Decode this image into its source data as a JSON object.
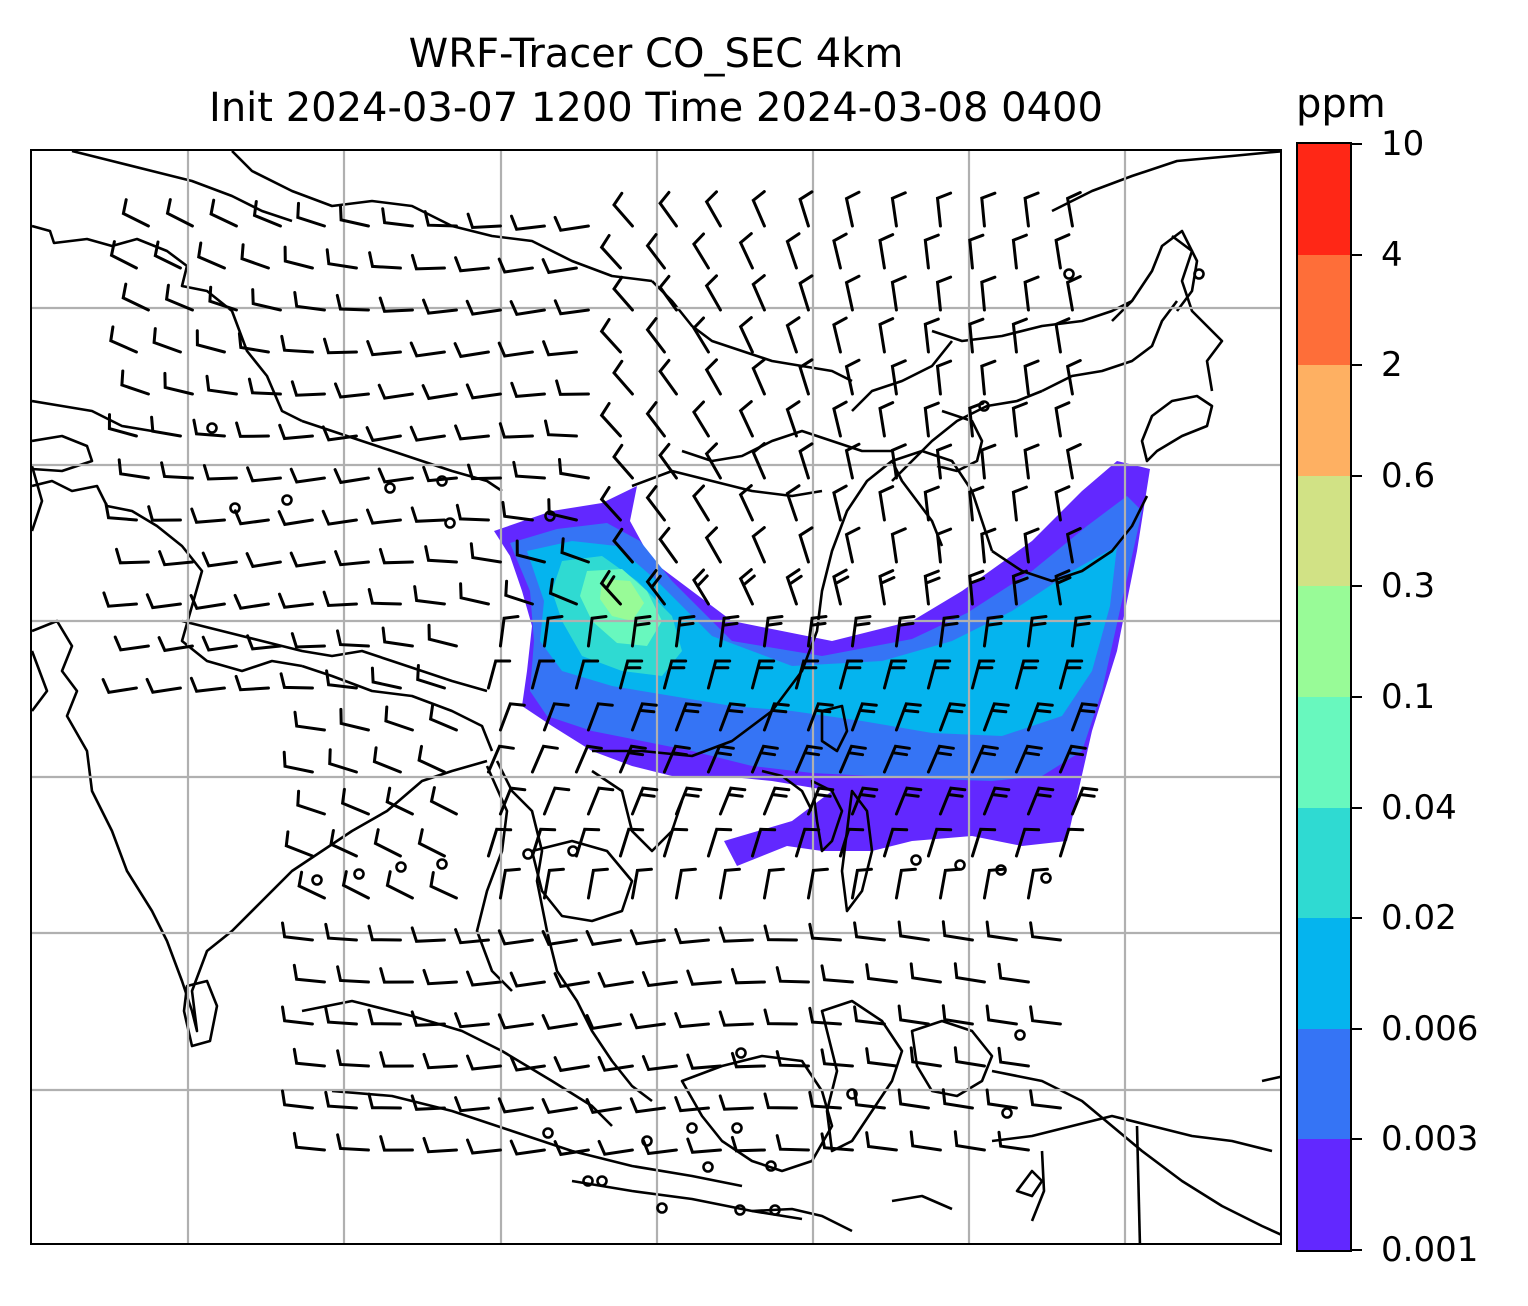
{
  "title": {
    "line1": "WRF-Tracer CO_SEC 4km",
    "line2": "Init 2024-03-07 1200 Time 2024-03-08 0400"
  },
  "colorbar": {
    "unit": "ppm",
    "labels": [
      "0.001",
      "0.003",
      "0.006",
      "0.02",
      "0.04",
      "0.1",
      "0.3",
      "0.6",
      "2",
      "4",
      "10"
    ],
    "colors": [
      "#6228ff",
      "#3574f5",
      "#05b4ee",
      "#2fdad2",
      "#68f8be",
      "#98fb97",
      "#d1e285",
      "#feb062",
      "#fe6e39",
      "#ff2716"
    ]
  },
  "chart_data": {
    "type": "heatmap",
    "field": "CO_SEC tracer concentration",
    "unit": "ppm",
    "levels": [
      0.001,
      0.003,
      0.006,
      0.02,
      0.04,
      0.1,
      0.3,
      0.6,
      2,
      4,
      10
    ],
    "overlays": [
      "coastlines",
      "country-borders",
      "lat-lon-gridlines",
      "wind-barbs"
    ],
    "grid": true
  }
}
